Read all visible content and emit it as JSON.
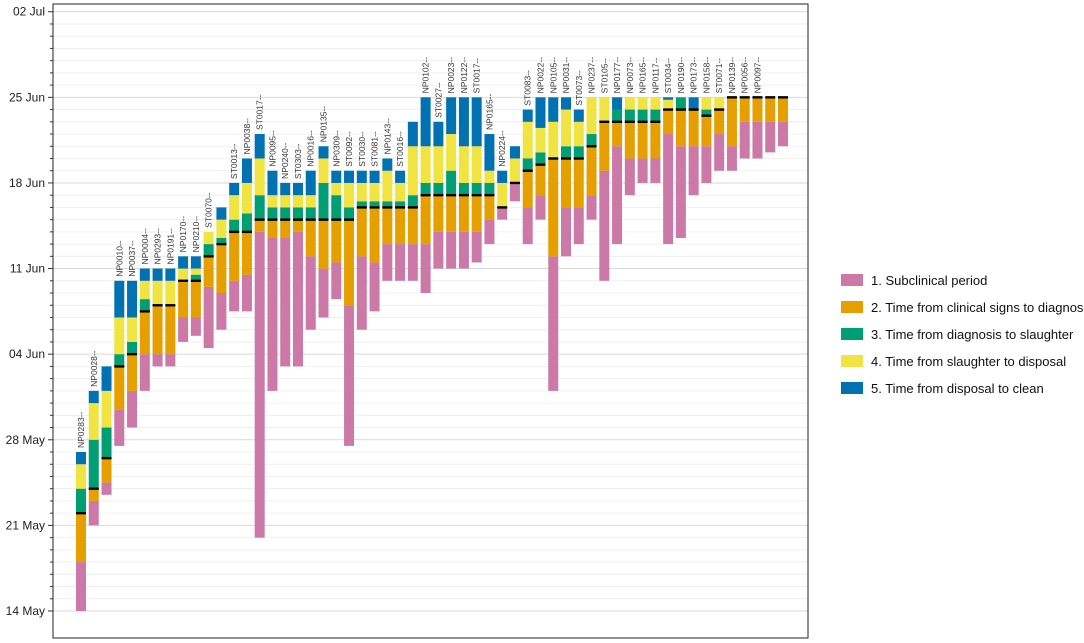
{
  "chart_data": {
    "type": "bar",
    "subtype": "stacked-timeline",
    "title": "",
    "xlabel": "",
    "ylabel": "",
    "y_axis": {
      "ticks": [
        "14 May",
        "21 May",
        "28 May",
        "04 Jun",
        "11 Jun",
        "18 Jun",
        "25 Jun",
        "02 Jul"
      ],
      "tick_days": [
        0,
        7,
        14,
        21,
        28,
        35,
        42,
        49
      ],
      "range_days": [
        -0.2,
        49.5
      ],
      "origin_date": "14 May",
      "minor_step_days": 1
    },
    "legend": {
      "position": "right",
      "entries": [
        {
          "key": "sub",
          "label": "1. Subclinical period",
          "color": "#CC79A7"
        },
        {
          "key": "cli",
          "label": "2. Time from clinical signs to diagnosis",
          "color": "#E69F00"
        },
        {
          "key": "dia",
          "label": "3. Time from diagnosis to slaughter",
          "color": "#009E73"
        },
        {
          "key": "sla",
          "label": "4. Time from slaughter to disposal",
          "color": "#F0E442"
        },
        {
          "key": "dis",
          "label": "5. Time from disposal to clean",
          "color": "#0072B2"
        }
      ]
    },
    "diagnosis_marker_color": "#000000",
    "segment_order": [
      "sub",
      "cli",
      "dia",
      "sla",
      "dis"
    ],
    "bar_units": "days since 14 May: [start, subclinical end, diagnosis, slaughter, disposal, clean]",
    "bars": [
      {
        "label": "NP0283--",
        "b": [
          0,
          4,
          8,
          10,
          12,
          13
        ]
      },
      {
        "label": "NP0028--",
        "b": [
          7,
          9,
          10,
          14,
          17,
          18
        ]
      },
      {
        "label": "",
        "b": [
          9.5,
          10.5,
          12.5,
          15,
          18,
          20
        ]
      },
      {
        "label": "NP0010--",
        "b": [
          13.5,
          16.5,
          20,
          21,
          24,
          27
        ]
      },
      {
        "label": "NP0037--",
        "b": [
          15,
          18,
          21,
          22,
          24,
          27
        ]
      },
      {
        "label": "NP0004--",
        "b": [
          18,
          21,
          24.5,
          25.5,
          27,
          28
        ]
      },
      {
        "label": "NP0293--",
        "b": [
          20,
          21,
          25,
          25,
          27,
          28
        ]
      },
      {
        "label": "NP0191--",
        "b": [
          20,
          21,
          25,
          25,
          27,
          28
        ]
      },
      {
        "label": "NP0170--",
        "b": [
          22,
          24,
          27,
          27,
          28,
          29
        ]
      },
      {
        "label": "NP0210--",
        "b": [
          22.5,
          24,
          27,
          27.5,
          28,
          29
        ]
      },
      {
        "label": "ST0070--",
        "b": [
          21.5,
          26.5,
          29,
          30,
          31,
          31
        ]
      },
      {
        "label": "",
        "b": [
          23,
          26,
          30,
          30.5,
          32,
          33
        ]
      },
      {
        "label": "ST0013--",
        "b": [
          24.5,
          27,
          31,
          32,
          34,
          35
        ]
      },
      {
        "label": "NP0038--",
        "b": [
          24.5,
          27.5,
          31,
          32.5,
          35,
          37
        ]
      },
      {
        "label": "ST0017--",
        "b": [
          6,
          31,
          32,
          34,
          37,
          39
        ]
      },
      {
        "label": "NP0095--",
        "b": [
          18,
          30.5,
          32,
          33,
          34,
          36
        ]
      },
      {
        "label": "NP0240--",
        "b": [
          20,
          30.5,
          32,
          33,
          34,
          35
        ]
      },
      {
        "label": "ST0303--",
        "b": [
          20,
          31,
          32,
          33,
          34,
          35
        ]
      },
      {
        "label": "NP0016--",
        "b": [
          23,
          29,
          32,
          33,
          34,
          36
        ]
      },
      {
        "label": "NP0135--",
        "b": [
          24,
          28,
          32,
          35,
          37,
          38
        ]
      },
      {
        "label": "NP0309--",
        "b": [
          25.5,
          28.5,
          32,
          34,
          35,
          36
        ]
      },
      {
        "label": "ST0092--",
        "b": [
          13.5,
          25,
          32,
          33,
          35,
          36
        ]
      },
      {
        "label": "ST0030--",
        "b": [
          23,
          29,
          33,
          33.5,
          35,
          36
        ]
      },
      {
        "label": "ST0081--",
        "b": [
          24.5,
          28.5,
          33,
          33.5,
          35,
          36
        ]
      },
      {
        "label": "NP0143--",
        "b": [
          27,
          30,
          33,
          33.5,
          36,
          37
        ]
      },
      {
        "label": "ST0016--",
        "b": [
          27,
          30,
          33,
          33.5,
          35,
          36
        ]
      },
      {
        "label": "",
        "b": [
          27,
          30,
          33,
          34,
          38,
          40
        ]
      },
      {
        "label": "NP0102--",
        "b": [
          26,
          30,
          34,
          35,
          38,
          42
        ]
      },
      {
        "label": "ST0027--",
        "b": [
          28,
          31,
          34,
          35,
          38,
          40
        ]
      },
      {
        "label": "NP0023--",
        "b": [
          28,
          31,
          34,
          36,
          39,
          42
        ]
      },
      {
        "label": "NP0122--",
        "b": [
          28,
          31,
          34,
          35,
          38,
          42
        ]
      },
      {
        "label": "ST0017--",
        "b": [
          28.5,
          31,
          34,
          35,
          38,
          42
        ]
      },
      {
        "label": "NP0165--",
        "b": [
          30,
          32,
          34,
          35,
          36,
          39
        ]
      },
      {
        "label": "NP0224--",
        "b": [
          32,
          33,
          33,
          33,
          35,
          36
        ]
      },
      {
        "label": "",
        "b": [
          33.5,
          35,
          35,
          35,
          37,
          38
        ]
      },
      {
        "label": "ST0083--",
        "b": [
          30,
          33,
          36,
          37,
          40,
          41
        ]
      },
      {
        "label": "NP0022--",
        "b": [
          32,
          34,
          36.5,
          37.5,
          39.5,
          42
        ]
      },
      {
        "label": "NP0105--",
        "b": [
          18,
          29,
          37,
          37,
          40,
          42
        ]
      },
      {
        "label": "NP0031--",
        "b": [
          29,
          33,
          37,
          38,
          41,
          42
        ]
      },
      {
        "label": "ST0073--",
        "b": [
          30,
          33,
          37,
          38,
          40,
          41
        ]
      },
      {
        "label": "NP0237--",
        "b": [
          32,
          34,
          38,
          39,
          42,
          42
        ]
      },
      {
        "label": "ST0105--",
        "b": [
          27,
          36,
          40,
          40,
          42,
          42
        ]
      },
      {
        "label": "NP0177--",
        "b": [
          30,
          38,
          40,
          41,
          41,
          42
        ]
      },
      {
        "label": "NP0073--",
        "b": [
          34,
          37,
          40,
          41,
          42,
          42
        ]
      },
      {
        "label": "NP0165--",
        "b": [
          35,
          37,
          40,
          41,
          42,
          42
        ]
      },
      {
        "label": "NP0117--",
        "b": [
          35,
          37,
          40,
          41,
          42,
          42
        ]
      },
      {
        "label": "ST0034--",
        "b": [
          30,
          39,
          41,
          41,
          41.8,
          42
        ]
      },
      {
        "label": "NP0190--",
        "b": [
          30.5,
          38,
          41,
          42,
          42,
          42
        ]
      },
      {
        "label": "NP0173--",
        "b": [
          34,
          38,
          41,
          41,
          41,
          42
        ]
      },
      {
        "label": "NP0158--",
        "b": [
          35,
          38,
          40.5,
          41,
          42,
          42
        ]
      },
      {
        "label": "ST0071--",
        "b": [
          36,
          39,
          41,
          41,
          42,
          42
        ]
      },
      {
        "label": "NP0139--",
        "b": [
          36,
          38,
          42,
          42,
          42,
          42
        ]
      },
      {
        "label": "NP0056--",
        "b": [
          37,
          40,
          42,
          42,
          42,
          42
        ]
      },
      {
        "label": "NP0097--",
        "b": [
          37,
          40,
          42,
          42,
          42,
          42
        ]
      },
      {
        "label": "",
        "b": [
          37.5,
          40,
          42,
          42,
          42,
          42
        ]
      },
      {
        "label": "",
        "b": [
          38,
          40,
          42,
          42,
          42,
          42
        ]
      }
    ]
  }
}
